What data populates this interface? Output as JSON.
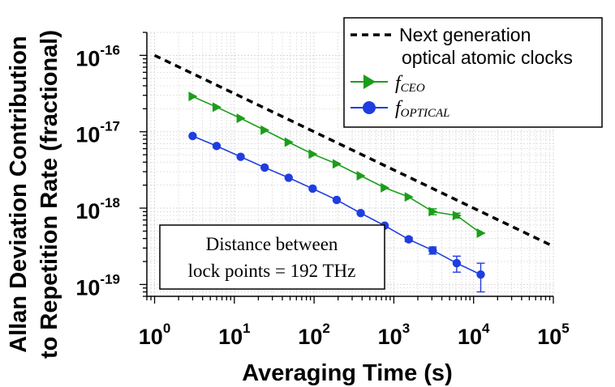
{
  "chart_data": {
    "type": "line",
    "title": "",
    "xlabel": "Averaging Time (s)",
    "ylabel_line1": "Allan Deviation Contribution",
    "ylabel_line2": "to Repetition Rate (fractional)",
    "xscale": "log",
    "yscale": "log",
    "xlim": [
      0.8,
      100000
    ],
    "ylim": [
      7e-20,
      2e-16
    ],
    "grid": true,
    "x_ticks": [
      {
        "base": "10",
        "exp": "0",
        "value": 1
      },
      {
        "base": "10",
        "exp": "1",
        "value": 10
      },
      {
        "base": "10",
        "exp": "2",
        "value": 100
      },
      {
        "base": "10",
        "exp": "3",
        "value": 1000
      },
      {
        "base": "10",
        "exp": "4",
        "value": 10000
      },
      {
        "base": "10",
        "exp": "5",
        "value": 100000
      }
    ],
    "y_ticks": [
      {
        "base": "10",
        "exp": "-16",
        "value": 1e-16
      },
      {
        "base": "10",
        "exp": "-17",
        "value": 1e-17
      },
      {
        "base": "10",
        "exp": "-18",
        "value": 1e-18
      },
      {
        "base": "10",
        "exp": "-19",
        "value": 1e-19
      }
    ],
    "series": [
      {
        "name": "fCEO",
        "legend_main": "f",
        "legend_sub": "CEO",
        "color": "#1a9e1a",
        "marker": "triangle-right",
        "x": [
          3,
          6,
          12,
          24,
          48,
          96,
          192,
          384,
          768,
          1536,
          3072,
          6144,
          12288
        ],
        "y": [
          2.9e-17,
          2.1e-17,
          1.5e-17,
          1.05e-17,
          7.3e-18,
          5.1e-18,
          3.8e-18,
          2.65e-18,
          1.85e-18,
          1.4e-18,
          9e-19,
          8e-19,
          4.7e-19
        ],
        "err": [
          0,
          0,
          0,
          0,
          0,
          0,
          0,
          0,
          0,
          0,
          8e-20,
          6e-20,
          5e-21
        ]
      },
      {
        "name": "fOPTICAL",
        "legend_main": "f",
        "legend_sub": "OPTICAL",
        "color": "#1f3de0",
        "marker": "circle",
        "x": [
          3,
          6,
          12,
          24,
          48,
          96,
          192,
          384,
          768,
          1536,
          3072,
          6144,
          12288
        ],
        "y": [
          8.8e-18,
          6.5e-18,
          4.7e-18,
          3.4e-18,
          2.5e-18,
          1.8e-18,
          1.28e-18,
          8.6e-19,
          5.9e-19,
          3.9e-19,
          2.8e-19,
          1.9e-19,
          1.35e-19
        ],
        "err": [
          0,
          0,
          0,
          0,
          0,
          0,
          0,
          0,
          0,
          2.5e-20,
          3e-20,
          4.5e-20,
          5.5e-20
        ]
      },
      {
        "name": "Next generation optical atomic clocks",
        "legend_line1": "Next generation",
        "legend_line2": "optical atomic clocks",
        "color": "#000000",
        "style": "dashed",
        "x": [
          1,
          100000
        ],
        "y": [
          1e-16,
          3.16e-19
        ]
      }
    ],
    "annotation_line1": "Distance between",
    "annotation_line2": "lock points = 192 THz",
    "legend_position": "top-right"
  }
}
